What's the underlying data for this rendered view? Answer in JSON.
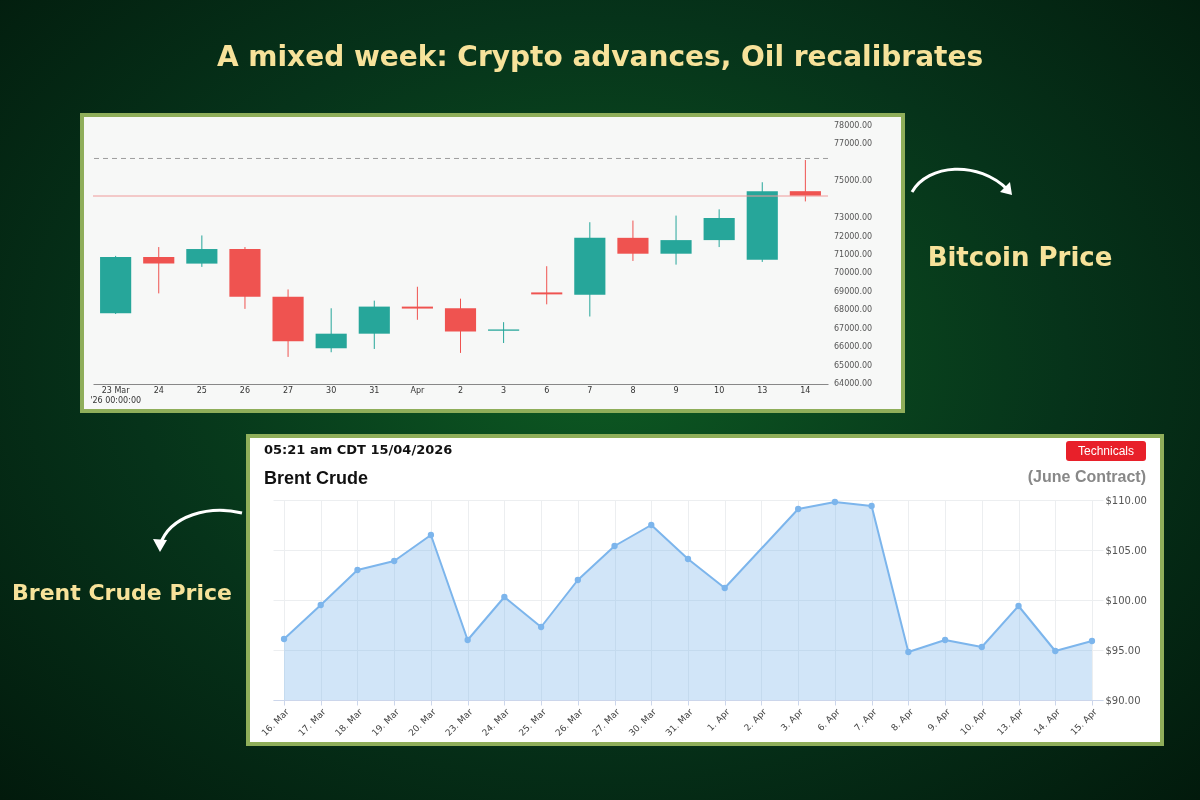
{
  "chart_data": [
    {
      "type": "candlestick",
      "title": "A mixed week: Crypto advances, Oil recalibrates",
      "annotations": [
        "Bitcoin Price"
      ],
      "categories": [
        "23 Mar '26 00:00:00",
        "24",
        "25",
        "26",
        "27",
        "30",
        "31",
        "Apr",
        "2",
        "3",
        "6",
        "7",
        "8",
        "9",
        "10",
        "13",
        "14"
      ],
      "ohlc": [
        [
          67840,
          70950,
          67800,
          70893
        ],
        [
          70893,
          71431,
          68917,
          70533
        ],
        [
          70533,
          72061,
          70354,
          71324
        ],
        [
          71324,
          71431,
          68076,
          68739
        ],
        [
          68739,
          69132,
          65470,
          66316
        ],
        [
          65939,
          68109,
          65723,
          66730
        ],
        [
          66730,
          68523,
          65901,
          68200
        ],
        [
          68200,
          69277,
          67484,
          68093
        ],
        [
          68109,
          68631,
          65686,
          66854
        ],
        [
          66890,
          67355,
          66224,
          66960
        ],
        [
          68970,
          70392,
          68324,
          68863
        ],
        [
          68847,
          72778,
          67662,
          71932
        ],
        [
          71932,
          72869,
          70677,
          71070
        ],
        [
          71070,
          73138,
          70478,
          71808
        ],
        [
          71808,
          73478,
          71431,
          73009
        ],
        [
          70747,
          74948,
          70624,
          74463
        ],
        [
          74463,
          76154,
          73908,
          74215
        ]
      ],
      "colors": [
        "#26a69a",
        "#ef5350",
        "#26a69a",
        "#ef5350",
        "#ef5350",
        "#26a69a",
        "#26a69a",
        "#ef5350",
        "#ef5350",
        "#26a69a",
        "#ef5350",
        "#26a69a",
        "#ef5350",
        "#26a69a",
        "#26a69a",
        "#26a69a",
        "#ef5350"
      ],
      "ylim": [
        64000,
        78000
      ],
      "yticks": [
        {
          "value": 64000,
          "label": "64000.00"
        },
        {
          "value": 65000,
          "label": "65000.00"
        },
        {
          "value": 66000,
          "label": "66000.00"
        },
        {
          "value": 67000,
          "label": "67000.00"
        },
        {
          "value": 68000,
          "label": "68000.00"
        },
        {
          "value": 69000,
          "label": "69000.00"
        },
        {
          "value": 70000,
          "label": "70000.00"
        },
        {
          "value": 71000,
          "label": "71000.00"
        },
        {
          "value": 72000,
          "label": "72000.00"
        },
        {
          "value": 73000,
          "label": "73000.00"
        },
        {
          "value": 75000,
          "label": "75000.00"
        },
        {
          "value": 77000,
          "label": "77000.00"
        },
        {
          "value": 78000,
          "label": "78000.00"
        }
      ],
      "ref_lines": [
        {
          "axis": "y",
          "value": 76238,
          "color": "#9e9e9e",
          "line_style": "dashed"
        },
        {
          "axis": "y",
          "value": 74201,
          "color": "#ef9a9a",
          "line_style": "solid"
        }
      ]
    },
    {
      "type": "area",
      "title": "Brent Crude",
      "subtitle": "(June Contract)",
      "annotations": [
        "05:21 am CDT 15/04/2026",
        "Technicals",
        "Brent Crude Price"
      ],
      "categories": [
        "16. Mar",
        "17. Mar",
        "18. Mar",
        "19. Mar",
        "20. Mar",
        "23. Mar",
        "24. Mar",
        "25. Mar",
        "26. Mar",
        "27. Mar",
        "30. Mar",
        "31. Mar",
        "1. Apr",
        "2. Apr",
        "3. Apr",
        "6. Apr",
        "7. Apr",
        "8. Apr",
        "9. Apr",
        "10. Apr",
        "13. Apr",
        "14. Apr",
        "15. Apr"
      ],
      "series": [
        {
          "color": "#7cb5ec",
          "values": [
            96.1,
            99.5,
            103.0,
            103.9,
            106.5,
            96.0,
            100.3,
            97.3,
            102.0,
            105.4,
            107.5,
            104.1,
            101.2,
            null,
            109.1,
            109.8,
            109.4,
            94.8,
            96.0,
            95.3,
            99.4,
            94.9,
            95.9
          ]
        }
      ],
      "ylim": [
        90,
        110
      ],
      "yticks": [
        {
          "value": 90,
          "label": "$90.00"
        },
        {
          "value": 95,
          "label": "$95.00"
        },
        {
          "value": 100,
          "label": "$100.00"
        },
        {
          "value": 105,
          "label": "$105.00"
        },
        {
          "value": 110,
          "label": "$110.00"
        }
      ],
      "grid": true,
      "marker": "circle",
      "line_style": "solid"
    }
  ]
}
